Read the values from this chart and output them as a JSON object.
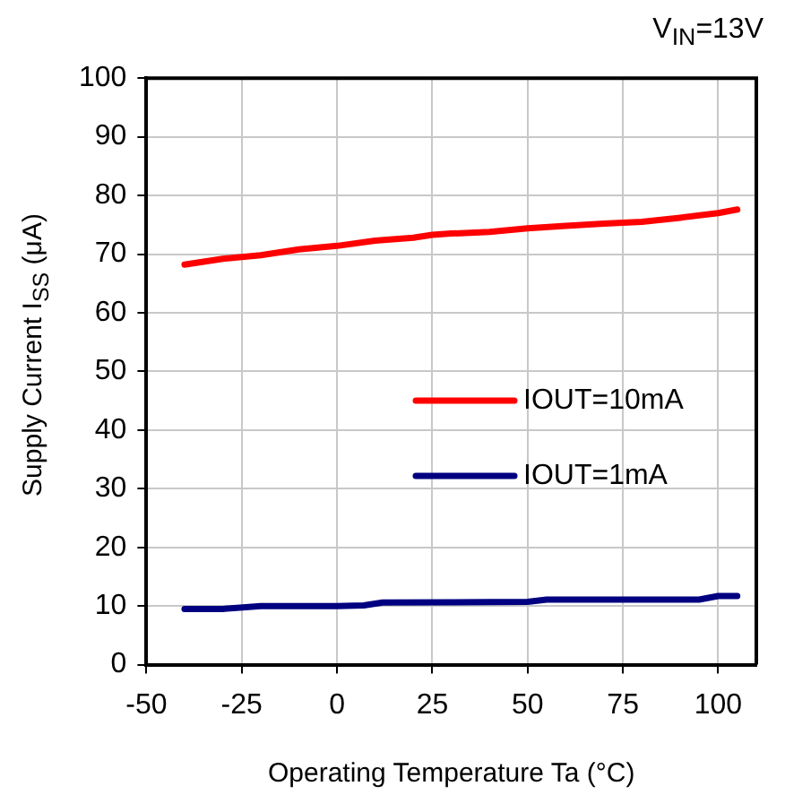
{
  "chart_data": {
    "type": "line",
    "title": "V$_{IN}$=13V",
    "xlabel": "Operating Temperature Ta (°C)",
    "ylabel": "Supply Current I$_{SS}$ (μA)",
    "xlim": [
      -50,
      110
    ],
    "xticks": [
      -50,
      -25,
      0,
      25,
      50,
      75,
      100
    ],
    "ylim": [
      0,
      100
    ],
    "yticks": [
      0,
      10,
      20,
      30,
      40,
      50,
      60,
      70,
      80,
      90,
      100
    ],
    "grid": true,
    "legend": "right",
    "marker": "none",
    "line_style": "solid",
    "series": [
      {
        "name": "IOUT=10mA",
        "color": "#ff0000",
        "x": [
          -40,
          -30,
          -20,
          -10,
          0,
          10,
          20,
          25,
          30,
          40,
          50,
          60,
          70,
          80,
          90,
          100,
          105
        ],
        "values": [
          68.2,
          69.2,
          69.8,
          70.8,
          71.4,
          72.3,
          72.8,
          73.3,
          73.5,
          73.8,
          74.4,
          74.8,
          75.2,
          75.5,
          76.2,
          77,
          77.6
        ]
      },
      {
        "name": "IOUT=1mA",
        "color": "#000080",
        "x": [
          -40,
          -30,
          -20,
          0,
          7,
          12,
          50,
          55,
          95,
          100,
          105
        ],
        "values": [
          9.5,
          9.5,
          10,
          10,
          10.1,
          10.6,
          10.7,
          11.1,
          11.1,
          11.7,
          11.7
        ]
      }
    ]
  }
}
